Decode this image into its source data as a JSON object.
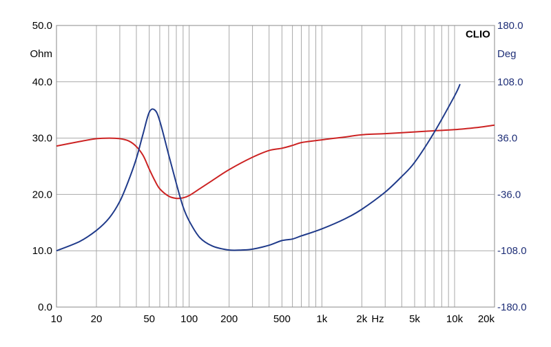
{
  "chart_data": {
    "type": "line",
    "brand": "CLIO",
    "left_axis": {
      "unit": "Ohm",
      "ylim": [
        0,
        50
      ],
      "ticks": [
        "0.0",
        "10.0",
        "20.0",
        "30.0",
        "40.0",
        "50.0"
      ],
      "tick_values": [
        0,
        10,
        20,
        30,
        40,
        50
      ]
    },
    "right_axis": {
      "unit": "Deg",
      "ylim": [
        -180,
        180
      ],
      "ticks": [
        "-180.0",
        "-108.0",
        "-36.0",
        "36.0",
        "108.0",
        "180.0"
      ],
      "tick_values": [
        -180,
        -108,
        -36,
        36,
        108,
        180
      ]
    },
    "x_axis": {
      "scale": "log",
      "xlim": [
        10,
        20000
      ],
      "unit": "Hz",
      "ticks": [
        {
          "value": 10,
          "label": "10"
        },
        {
          "value": 20,
          "label": "20"
        },
        {
          "value": 50,
          "label": "50"
        },
        {
          "value": 100,
          "label": "100"
        },
        {
          "value": 200,
          "label": "200"
        },
        {
          "value": 500,
          "label": "500"
        },
        {
          "value": 1000,
          "label": "1k"
        },
        {
          "value": 2000,
          "label": "2k"
        },
        {
          "value": 5000,
          "label": "5k"
        },
        {
          "value": 10000,
          "label": "10k"
        },
        {
          "value": 20000,
          "label": "20k"
        }
      ]
    },
    "grid": true,
    "colors": {
      "impedance": "#cc2222",
      "phase": "#1f3a8a",
      "grid": "#a8a8a8",
      "right_text": "#1f2f77"
    },
    "series": [
      {
        "axis": "left",
        "color": "#cc2222",
        "x": [
          10,
          15,
          20,
          25,
          30,
          35,
          40,
          45,
          50,
          55,
          60,
          70,
          80,
          90,
          100,
          120,
          150,
          200,
          300,
          400,
          500,
          600,
          700,
          1000,
          1500,
          2000,
          3000,
          5000,
          7000,
          10000,
          15000,
          20000
        ],
        "values": [
          28.6,
          29.4,
          29.9,
          30.0,
          29.9,
          29.5,
          28.5,
          26.9,
          24.5,
          22.5,
          21.0,
          19.7,
          19.3,
          19.4,
          19.8,
          21.0,
          22.5,
          24.4,
          26.6,
          27.8,
          28.2,
          28.7,
          29.2,
          29.7,
          30.2,
          30.6,
          30.8,
          31.1,
          31.3,
          31.5,
          31.9,
          32.3
        ]
      },
      {
        "axis": "right",
        "color": "#1f3a8a",
        "x": [
          10,
          15,
          20,
          25,
          30,
          35,
          40,
          45,
          50,
          55,
          60,
          70,
          80,
          90,
          100,
          120,
          150,
          200,
          250,
          300,
          400,
          500,
          600,
          700,
          1000,
          1500,
          2000,
          3000,
          4000,
          5000,
          7000,
          10000,
          11000
        ],
        "values": [
          -108,
          -96,
          -82,
          -66,
          -45,
          -18,
          10,
          42,
          69,
          72,
          58,
          15,
          -22,
          -52,
          -70,
          -91,
          -102,
          -107,
          -107,
          -106,
          -101,
          -95,
          -93,
          -89,
          -80,
          -67,
          -55,
          -33,
          -13,
          5,
          43,
          90,
          105
        ]
      }
    ]
  }
}
